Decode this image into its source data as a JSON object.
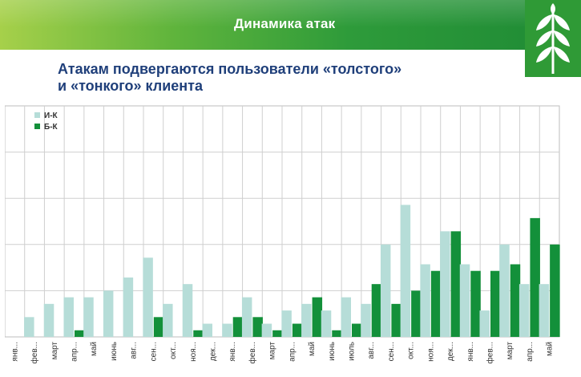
{
  "header": {
    "title": "Динамика атак"
  },
  "subtitle": {
    "line1": "Атакам подвергаются пользователи «толстого»",
    "line2": "и «тонкого» клиента"
  },
  "colors": {
    "series_ik": "#b6ddd8",
    "series_bk": "#13903a",
    "axis_text": "#333333",
    "subtitle": "#1f3f7a"
  },
  "chart_data": {
    "type": "bar",
    "title": "",
    "xlabel": "",
    "ylabel": "",
    "grid": true,
    "legend_position": "top-left",
    "ylim": [
      0,
      7
    ],
    "categories": [
      "янв...",
      "фев...",
      "март",
      "апр...",
      "май",
      "июнь",
      "авг...",
      "сен...",
      "окт...",
      "ноя...",
      "дек...",
      "янв...",
      "фев...",
      "март",
      "апр...",
      "май",
      "июнь",
      "июль",
      "авг...",
      "сен...",
      "окт...",
      "ноя...",
      "дек...",
      "янв...",
      "фев...",
      "март",
      "апр...",
      "май"
    ],
    "series": [
      {
        "name": "И-К",
        "values": [
          0,
          0.6,
          1.0,
          1.2,
          1.2,
          1.4,
          1.8,
          2.4,
          1.0,
          1.6,
          0.4,
          0.4,
          1.2,
          0.4,
          0.8,
          1.0,
          0.8,
          1.2,
          1.0,
          2.8,
          4.0,
          2.2,
          3.2,
          2.2,
          0.8,
          2.8,
          1.6,
          1.6
        ]
      },
      {
        "name": "Б-К",
        "values": [
          0,
          0,
          0,
          0.2,
          0,
          0,
          0,
          0.6,
          0,
          0.2,
          0,
          0.6,
          0.6,
          0.2,
          0.4,
          1.2,
          0.2,
          0.4,
          1.6,
          1.0,
          1.4,
          2.0,
          3.2,
          2.0,
          2.0,
          2.2,
          3.6,
          2.8
        ]
      }
    ]
  }
}
